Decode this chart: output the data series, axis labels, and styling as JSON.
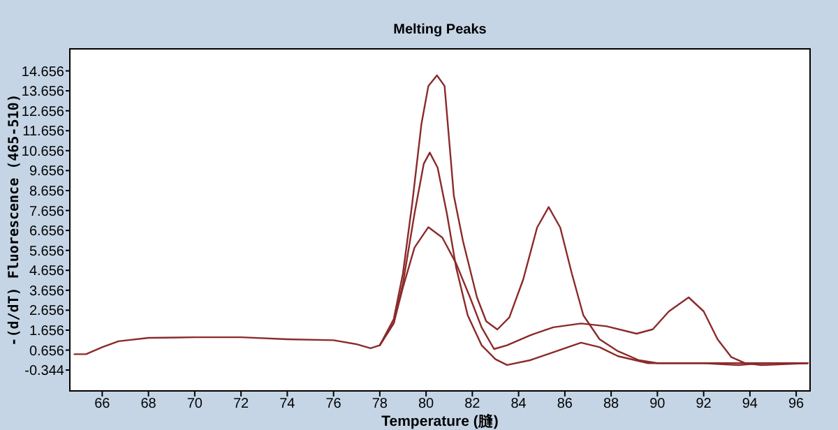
{
  "chart_data": {
    "type": "line",
    "title": "Melting Peaks",
    "xlabel": "Temperature (膖)",
    "ylabel": "-(d/dT) Fluorescence (465-510)",
    "xlim": [
      64.6,
      96.6
    ],
    "ylim": [
      -1.39,
      15.76
    ],
    "xticks": [
      66,
      68,
      70,
      72,
      74,
      76,
      78,
      80,
      82,
      84,
      86,
      88,
      90,
      92,
      94,
      96
    ],
    "yticks": [
      -0.344,
      0.656,
      1.656,
      2.656,
      3.656,
      4.656,
      5.656,
      6.656,
      7.656,
      8.656,
      9.656,
      10.656,
      11.656,
      12.656,
      13.656,
      14.656
    ],
    "grid": false,
    "marker": "none",
    "line_style": "solid",
    "series": [
      {
        "color": "#8b2a2a",
        "x": [
          64.8,
          65.3,
          66.0,
          66.7,
          68.0,
          70,
          72,
          74,
          76,
          77,
          77.6,
          78.0,
          78.6,
          79.0,
          79.4,
          79.8,
          80.1,
          80.47,
          80.8,
          81.2,
          81.6,
          82.2,
          82.6,
          83.08,
          83.6,
          84.2,
          84.8,
          85.3,
          85.8,
          86.3,
          86.8,
          87.5,
          88.3,
          89.2,
          90,
          92,
          93.5,
          94.5,
          96.5
        ],
        "values": [
          0.45,
          0.45,
          0.8,
          1.1,
          1.27,
          1.3,
          1.3,
          1.2,
          1.15,
          0.95,
          0.75,
          0.9,
          2.2,
          4.5,
          8.0,
          12.0,
          13.9,
          14.43,
          13.9,
          8.4,
          6.1,
          3.3,
          2.1,
          1.69,
          2.3,
          4.2,
          6.8,
          7.83,
          6.8,
          4.5,
          2.4,
          1.2,
          0.6,
          0.15,
          0.0,
          0.0,
          -0.1,
          0.0,
          0.0
        ]
      },
      {
        "color": "#8b2a2a",
        "x": [
          78.0,
          78.6,
          79.0,
          79.5,
          79.9,
          80.16,
          80.5,
          80.9,
          81.3,
          81.8,
          82.4,
          83.0,
          83.5,
          84.5,
          85.5,
          86.7,
          87.5,
          88.3,
          89.6,
          92,
          96.5
        ],
        "values": [
          0.9,
          2.0,
          4.0,
          7.5,
          10.0,
          10.56,
          9.8,
          7.5,
          4.8,
          2.4,
          0.9,
          0.2,
          -0.09,
          0.15,
          0.55,
          1.03,
          0.8,
          0.35,
          0.0,
          0.0,
          0.0
        ]
      },
      {
        "color": "#8b2a2a",
        "x": [
          78.0,
          78.6,
          79.0,
          79.5,
          80.1,
          80.7,
          81.3,
          81.9,
          82.4,
          82.94,
          83.5,
          84.5,
          85.5,
          86.7,
          87.8,
          89.1,
          89.8,
          90.5,
          91.35,
          92.0,
          92.6,
          93.2,
          93.8,
          94.5,
          96.5
        ],
        "values": [
          0.9,
          2.0,
          3.8,
          5.8,
          6.82,
          6.3,
          5.0,
          3.3,
          1.8,
          0.71,
          0.9,
          1.4,
          1.8,
          1.99,
          1.85,
          1.48,
          1.7,
          2.6,
          3.3,
          2.6,
          1.2,
          0.3,
          0.0,
          -0.1,
          0.0
        ]
      }
    ]
  }
}
